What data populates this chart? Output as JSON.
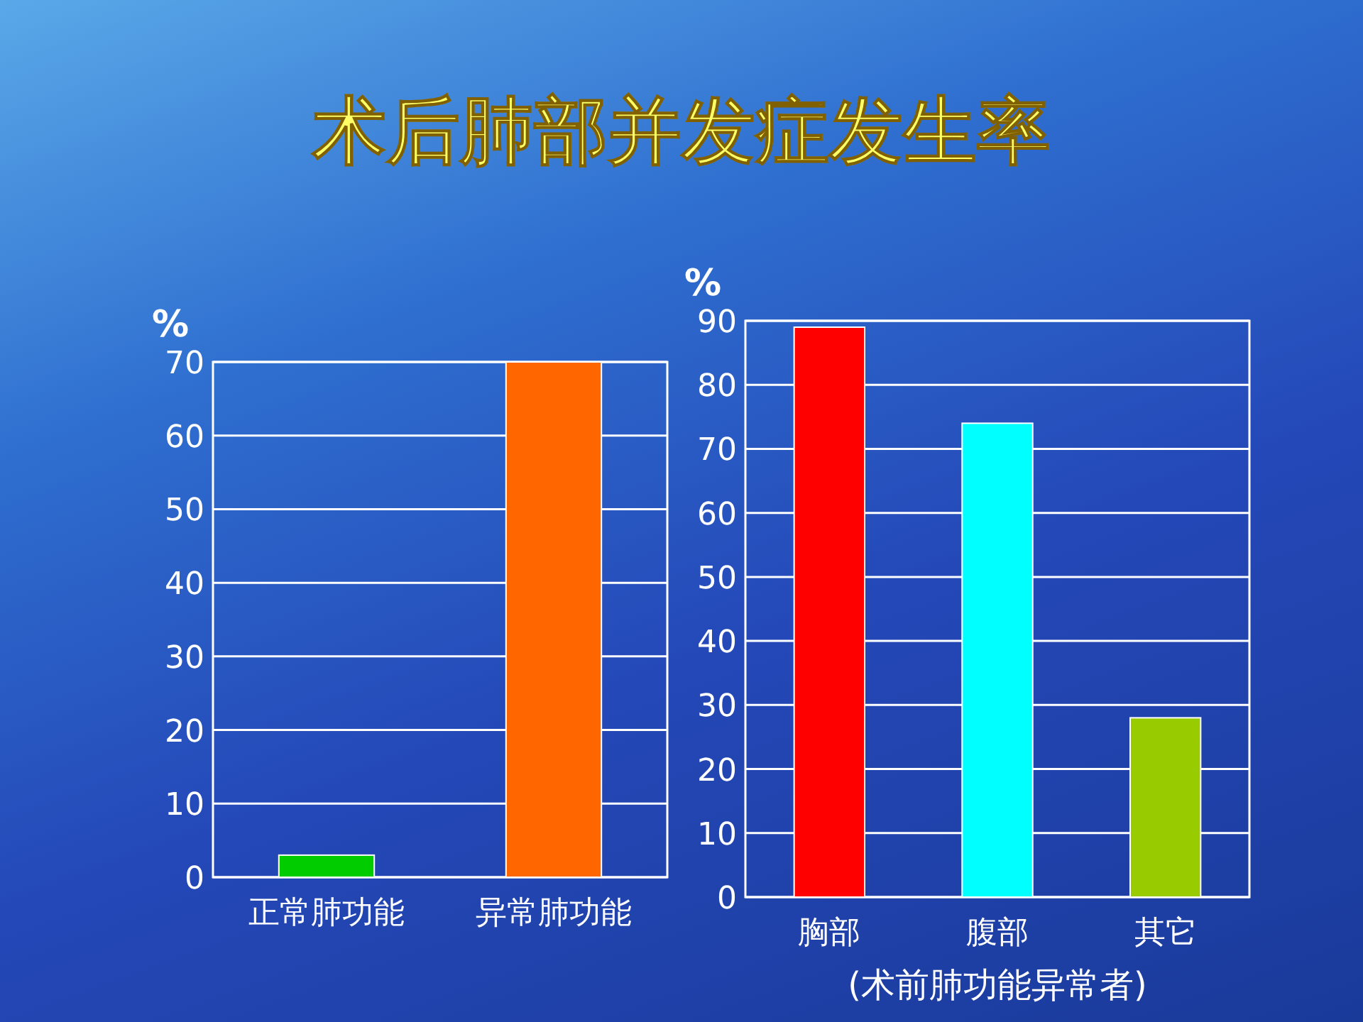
{
  "chart_data": [
    {
      "type": "bar",
      "title": "术后肺部并发症发生率",
      "ylabel": "%",
      "categories": [
        "正常肺功能",
        "异常肺功能"
      ],
      "values": [
        3,
        70
      ],
      "colors": [
        "#00cc00",
        "#ff6600"
      ],
      "ylim": [
        0,
        70
      ],
      "yticks": [
        0,
        10,
        20,
        30,
        40,
        50,
        60,
        70
      ],
      "grid": "y"
    },
    {
      "type": "bar",
      "ylabel": "%",
      "xlabel": "(术前肺功能异常者)",
      "categories": [
        "胸部",
        "腹部",
        "其它"
      ],
      "values": [
        89,
        74,
        28
      ],
      "colors": [
        "#ff0000",
        "#00ffff",
        "#99cc00"
      ],
      "ylim": [
        0,
        90
      ],
      "yticks": [
        0,
        10,
        20,
        30,
        40,
        50,
        60,
        70,
        80,
        90
      ],
      "grid": "y"
    }
  ]
}
